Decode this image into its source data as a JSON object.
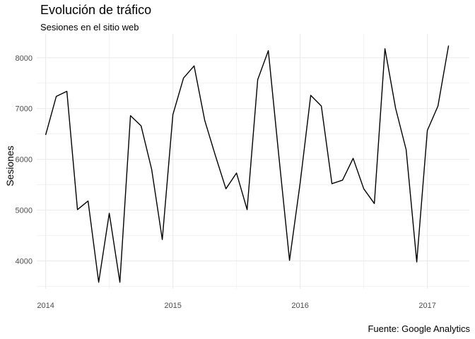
{
  "chart_data": {
    "type": "line",
    "title": "Evolución de tráfico",
    "subtitle": "Sesiones en el sitio web",
    "caption": "Fuente: Google Analytics",
    "xlabel": "",
    "ylabel": "Sesiones",
    "x_ticks": [
      "2014",
      "2015",
      "2016",
      "2017"
    ],
    "y_ticks": [
      4000,
      5000,
      6000,
      7000,
      8000
    ],
    "xlim": [
      2013.93,
      2017.33
    ],
    "ylim": [
      3450,
      8470
    ],
    "grid": true,
    "series_color": "#000000",
    "grid_color": "#ebebeb",
    "x": [
      2014.0,
      2014.0833,
      2014.1667,
      2014.25,
      2014.3333,
      2014.4167,
      2014.5,
      2014.5833,
      2014.6667,
      2014.75,
      2014.8333,
      2014.9167,
      2015.0,
      2015.0833,
      2015.1667,
      2015.25,
      2015.3333,
      2015.4167,
      2015.5,
      2015.5833,
      2015.6667,
      2015.75,
      2015.8333,
      2015.9167,
      2016.0,
      2016.0833,
      2016.1667,
      2016.25,
      2016.3333,
      2016.4167,
      2016.5,
      2016.5833,
      2016.6667,
      2016.75,
      2016.8333,
      2016.9167,
      2017.0,
      2017.0833,
      2017.1667
    ],
    "x_labels": [
      "2014-01",
      "2014-02",
      "2014-03",
      "2014-04",
      "2014-05",
      "2014-06",
      "2014-07",
      "2014-08",
      "2014-09",
      "2014-10",
      "2014-11",
      "2014-12",
      "2015-01",
      "2015-02",
      "2015-03",
      "2015-04",
      "2015-05",
      "2015-06",
      "2015-07",
      "2015-08",
      "2015-09",
      "2015-10",
      "2015-11",
      "2015-12",
      "2016-01",
      "2016-02",
      "2016-03",
      "2016-04",
      "2016-05",
      "2016-06",
      "2016-07",
      "2016-08",
      "2016-09",
      "2016-10",
      "2016-11",
      "2016-12",
      "2017-01",
      "2017-02",
      "2017-03"
    ],
    "y": [
      6480,
      7240,
      7340,
      5010,
      5180,
      3580,
      4940,
      3580,
      6860,
      6660,
      5800,
      4420,
      6880,
      7600,
      7840,
      6770,
      6080,
      5420,
      5730,
      5010,
      7570,
      8140,
      6050,
      4010,
      5530,
      7260,
      7050,
      5520,
      5590,
      6020,
      5420,
      5130,
      8180,
      7010,
      6190,
      3980,
      6570,
      7050,
      8240
    ]
  }
}
